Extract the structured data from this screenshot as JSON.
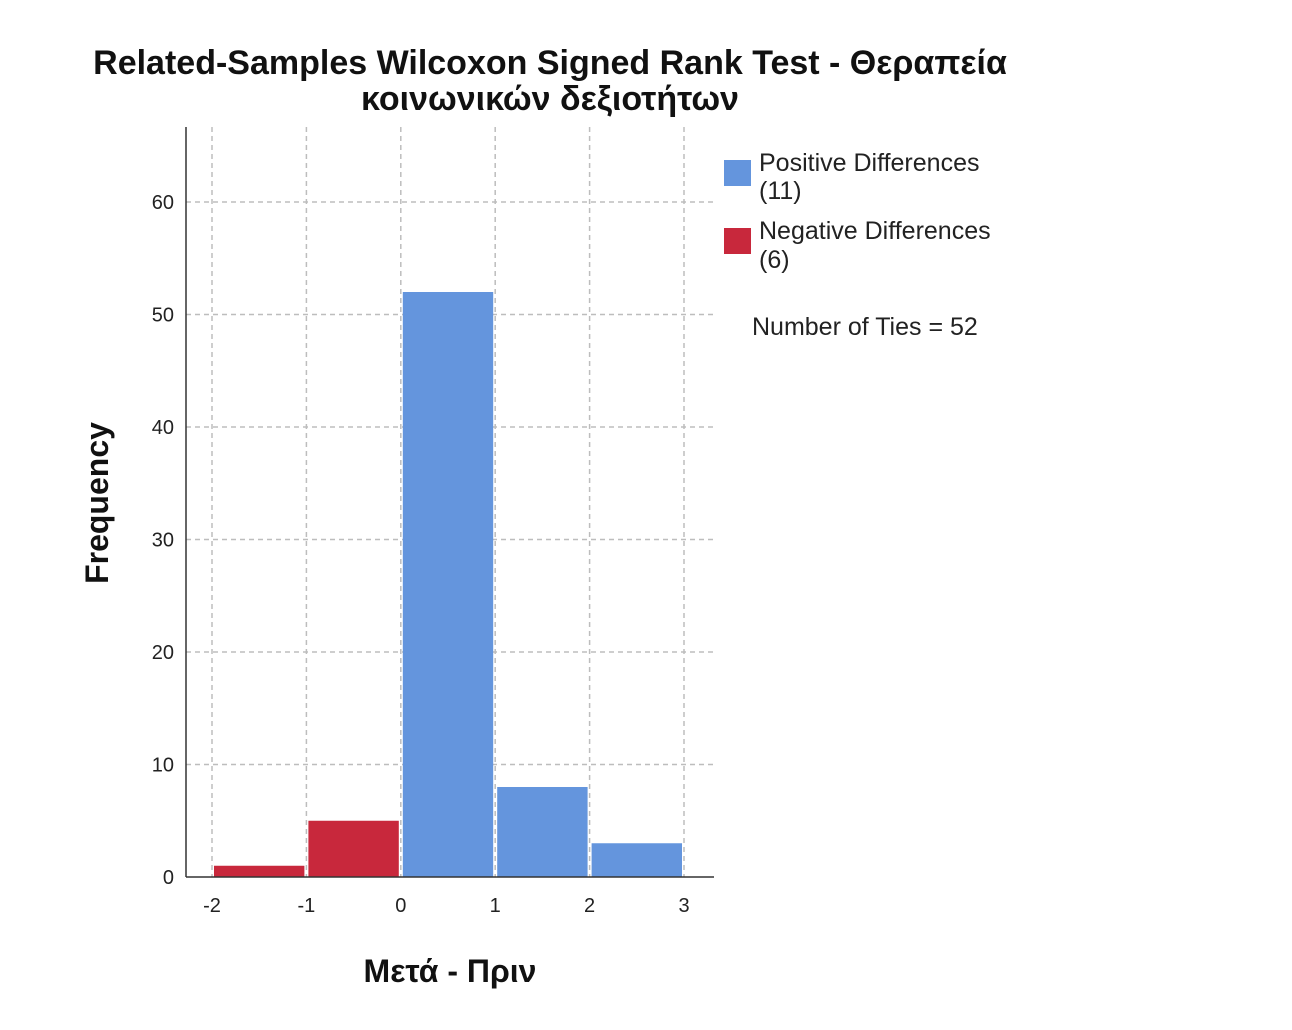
{
  "chart_data": {
    "type": "bar",
    "title": "Related-Samples Wilcoxon Signed Rank Test - Θεραπεία κοινωνικών δεξιοτήτων",
    "title_lines": [
      "Related-Samples Wilcoxon Signed Rank Test - Θεραπεία",
      "κοινωνικών δεξιοτήτων"
    ],
    "xlabel": "Μετά - Πριν",
    "ylabel": "Frequency",
    "xlim": [
      -2,
      3
    ],
    "ylim": [
      0,
      66
    ],
    "x_ticks": [
      -2,
      -1,
      0,
      1,
      2,
      3
    ],
    "y_ticks": [
      0,
      10,
      20,
      30,
      40,
      50,
      60
    ],
    "grid": true,
    "legend_position": "top-right",
    "bins": [
      {
        "from": -2,
        "to": -1,
        "value": 1,
        "series": "negative"
      },
      {
        "from": -1,
        "to": 0,
        "value": 5,
        "series": "negative"
      },
      {
        "from": 0,
        "to": 1,
        "value": 52,
        "series": "positive"
      },
      {
        "from": 1,
        "to": 2,
        "value": 8,
        "series": "positive"
      },
      {
        "from": 2,
        "to": 3,
        "value": 3,
        "series": "positive"
      }
    ],
    "series": [
      {
        "key": "positive",
        "name": "Positive Differences",
        "count_label": "(11)",
        "color": "#6495dd"
      },
      {
        "key": "negative",
        "name": "Negative Differences",
        "count_label": "(6)",
        "color": "#c8283c"
      }
    ],
    "annotation": "Number of Ties = 52"
  }
}
